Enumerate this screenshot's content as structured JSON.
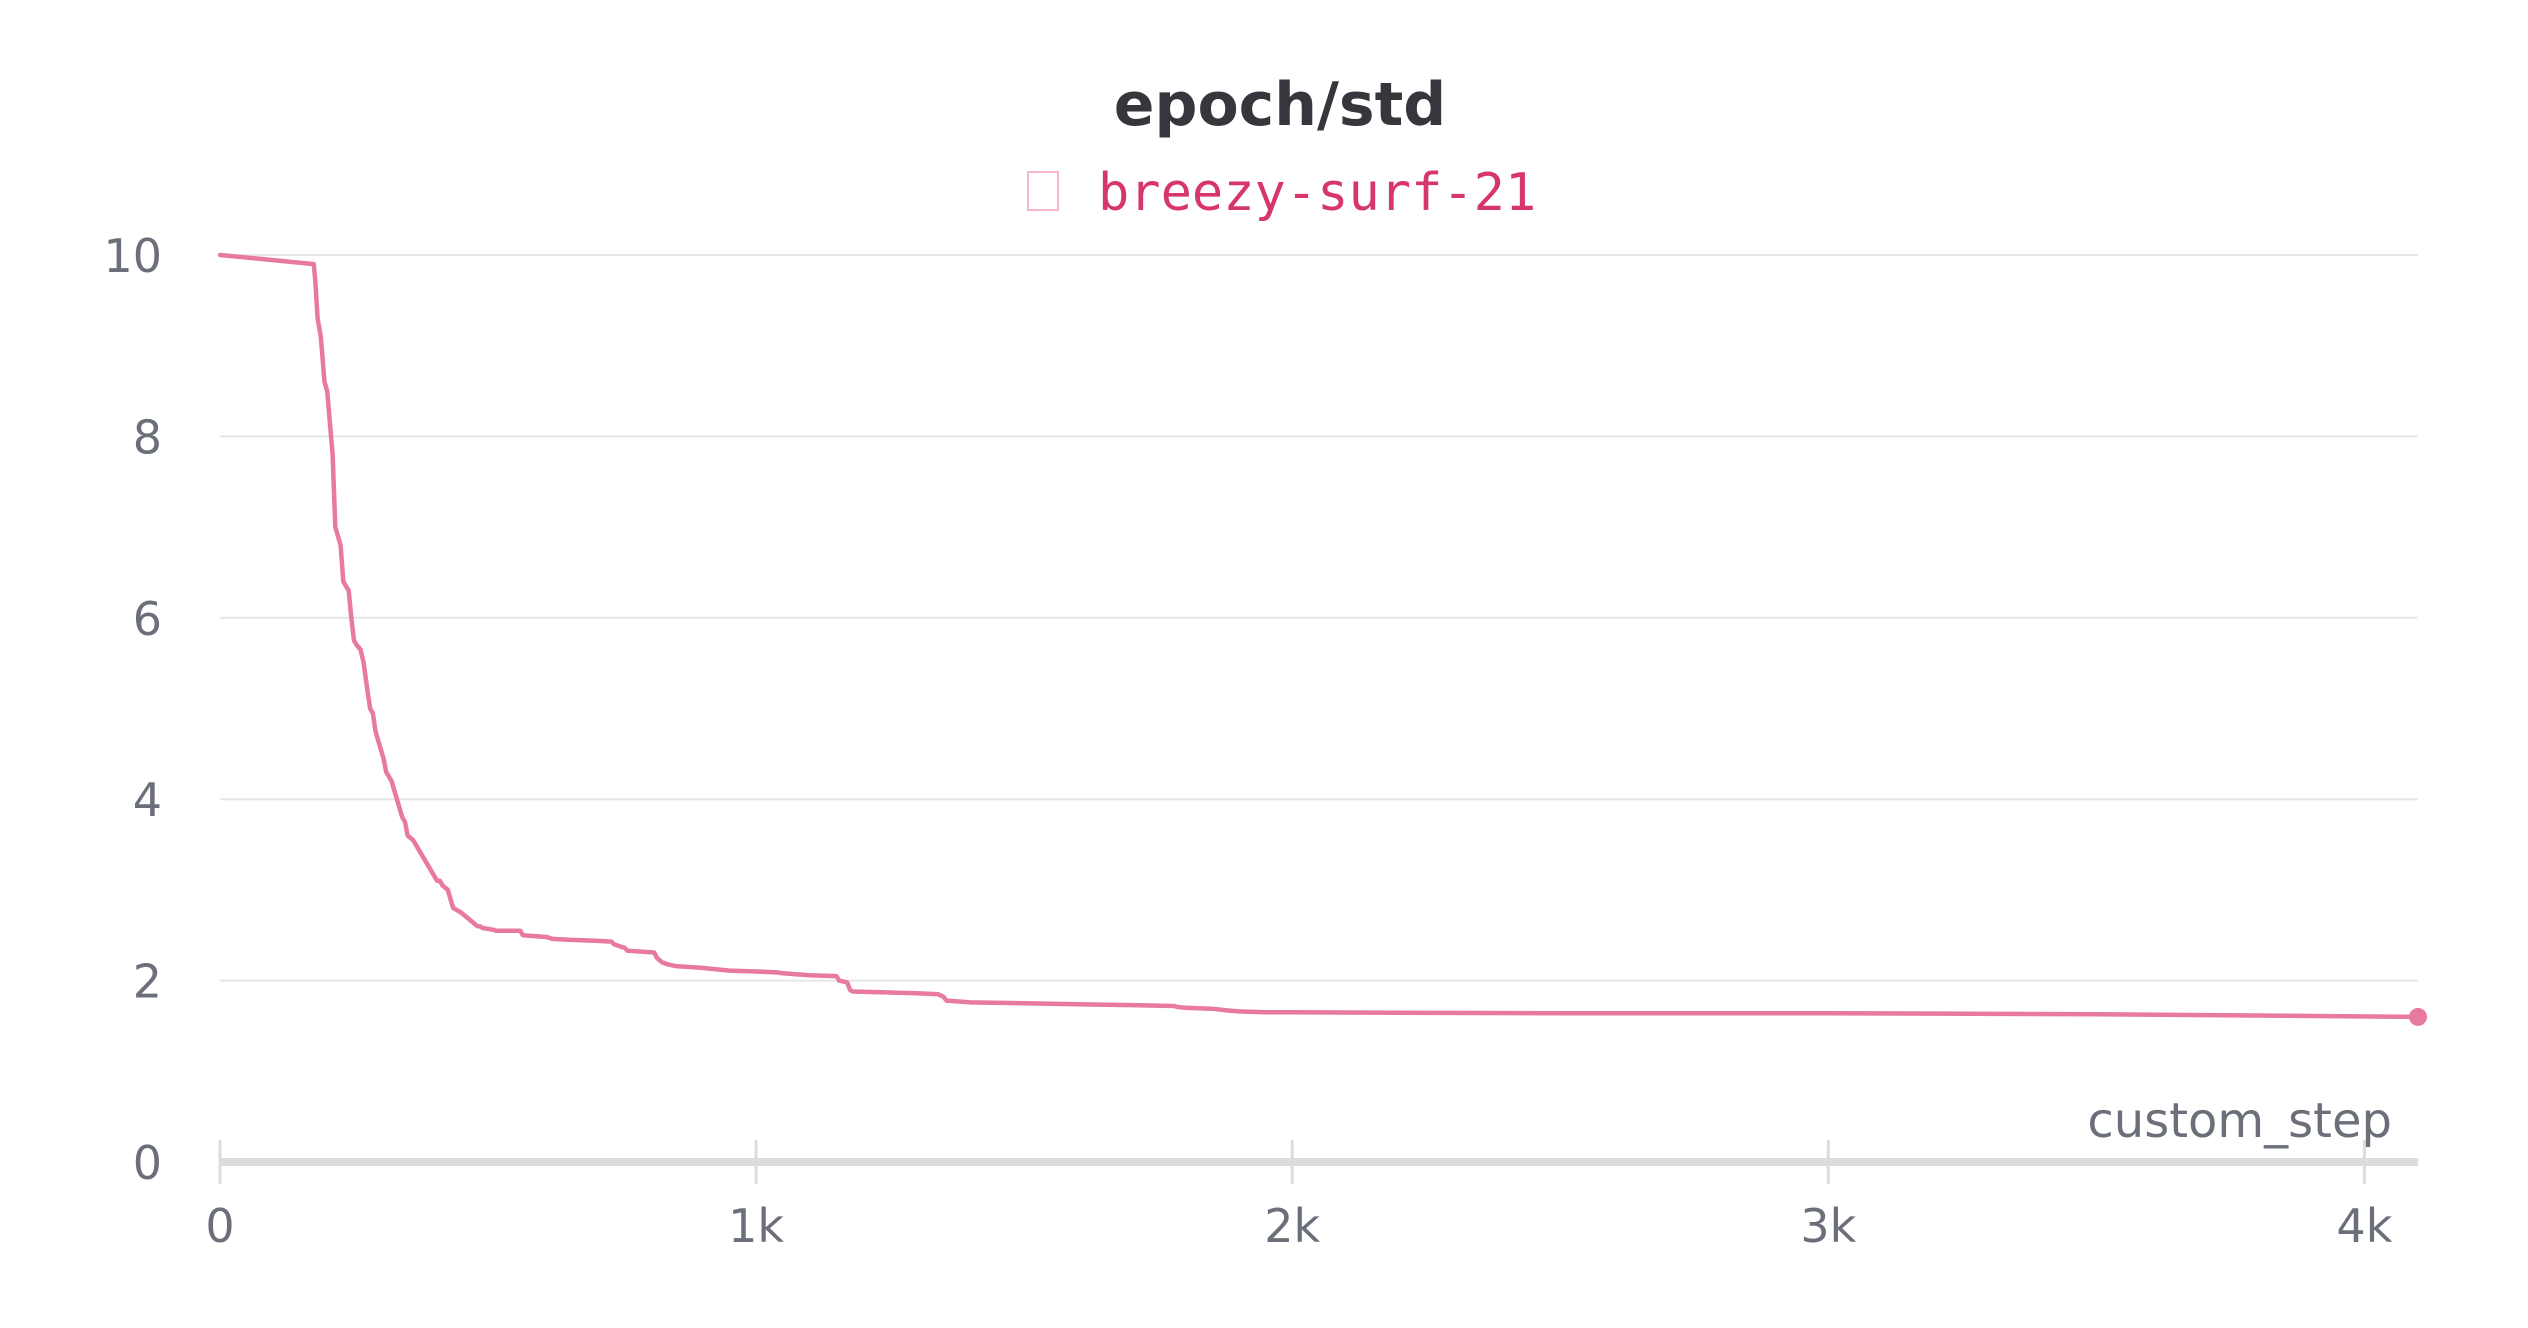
{
  "chart_data": {
    "type": "line",
    "title": "epoch/std",
    "xlabel": "custom_step",
    "ylabel": "",
    "xlim": [
      0,
      4100
    ],
    "ylim": [
      0,
      10
    ],
    "x_ticks": [
      0,
      1000,
      2000,
      3000,
      4000
    ],
    "x_tick_labels": [
      "0",
      "1k",
      "2k",
      "3k",
      "4k"
    ],
    "y_ticks": [
      0,
      2,
      4,
      6,
      8,
      10
    ],
    "y_tick_labels": [
      "0",
      "2",
      "4",
      "6",
      "8",
      "10"
    ],
    "grid": true,
    "legend_placement": "top-center",
    "series": [
      {
        "name": "breezy-surf-21",
        "color": "#e8799f",
        "label_color": "#d6356f",
        "end_marker": true,
        "x": [
          0,
          175,
          178,
          182,
          188,
          195,
          200,
          210,
          215,
          225,
          230,
          240,
          245,
          250,
          255,
          262,
          268,
          275,
          280,
          285,
          290,
          295,
          300,
          305,
          310,
          315,
          320,
          325,
          330,
          340,
          345,
          350,
          360,
          365,
          370,
          385,
          395,
          400,
          405,
          410,
          415,
          425,
          430,
          435,
          450,
          460,
          470,
          480,
          485,
          490,
          500,
          510,
          515,
          560,
          565,
          590,
          610,
          620,
          650,
          700,
          730,
          735,
          745,
          755,
          760,
          810,
          815,
          825,
          835,
          850,
          900,
          950,
          1000,
          1040,
          1050,
          1100,
          1150,
          1155,
          1170,
          1175,
          1180,
          1300,
          1340,
          1350,
          1355,
          1400,
          1500,
          1600,
          1700,
          1780,
          1785,
          1800,
          1850,
          1880,
          1900,
          1950,
          2000,
          2500,
          3000,
          3500,
          4100
        ],
        "y": [
          10.0,
          9.9,
          9.7,
          9.3,
          9.1,
          8.6,
          8.5,
          7.8,
          7.0,
          6.8,
          6.4,
          6.3,
          6.0,
          5.75,
          5.7,
          5.65,
          5.5,
          5.2,
          5.0,
          4.95,
          4.75,
          4.65,
          4.55,
          4.45,
          4.3,
          4.25,
          4.2,
          4.1,
          4.0,
          3.8,
          3.75,
          3.6,
          3.55,
          3.5,
          3.45,
          3.3,
          3.2,
          3.15,
          3.1,
          3.1,
          3.05,
          3.0,
          2.9,
          2.8,
          2.75,
          2.7,
          2.65,
          2.6,
          2.6,
          2.58,
          2.57,
          2.56,
          2.55,
          2.55,
          2.5,
          2.49,
          2.48,
          2.46,
          2.45,
          2.44,
          2.43,
          2.4,
          2.38,
          2.36,
          2.33,
          2.31,
          2.25,
          2.2,
          2.18,
          2.16,
          2.14,
          2.11,
          2.1,
          2.09,
          2.08,
          2.06,
          2.05,
          2.0,
          1.98,
          1.9,
          1.88,
          1.86,
          1.85,
          1.82,
          1.78,
          1.76,
          1.75,
          1.74,
          1.73,
          1.72,
          1.71,
          1.7,
          1.69,
          1.67,
          1.66,
          1.65,
          1.65,
          1.64,
          1.64,
          1.63,
          1.6
        ]
      }
    ]
  },
  "colors": {
    "background": "#ffffff",
    "grid": "#e6e6e9",
    "axis": "#dcdcdf",
    "tick_text": "#6b6f7a",
    "title_text": "#35373d"
  }
}
